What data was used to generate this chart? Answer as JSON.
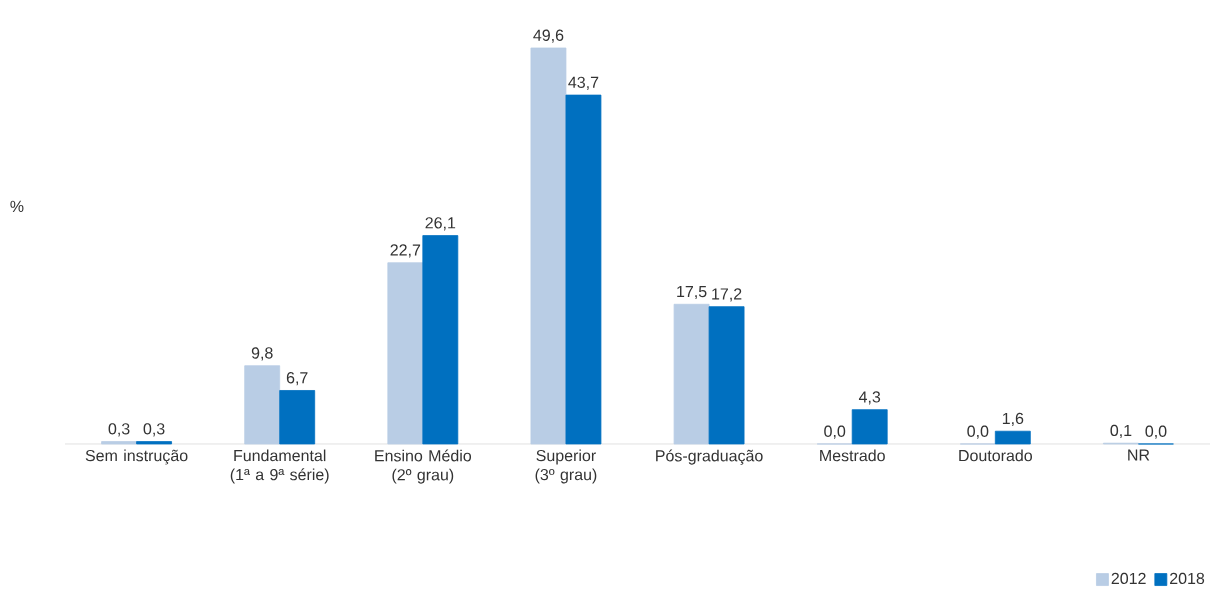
{
  "chart_data": {
    "type": "bar",
    "ylabel": "%",
    "categories": [
      "Sem instrução",
      "Fundamental (1ª a 9ª série)",
      "Ensino Médio (2º grau)",
      "Superior (3º grau)",
      "Pós-graduação",
      "Mestrado",
      "Doutorado",
      "NR"
    ],
    "series": [
      {
        "name": "2012",
        "color": "#b9cde5",
        "values": [
          0.3,
          9.8,
          22.7,
          49.6,
          17.5,
          0.0,
          0.0,
          0.1
        ],
        "value_labels": [
          "0,3",
          "9,8",
          "22,7",
          "49,6",
          "17,5",
          "0,0",
          "0,0",
          "0,1"
        ]
      },
      {
        "name": "2018",
        "color": "#0070c0",
        "values": [
          0.3,
          6.7,
          26.1,
          43.7,
          17.2,
          4.3,
          1.6,
          0.0
        ],
        "value_labels": [
          "0,3",
          "6,7",
          "26,1",
          "43,7",
          "17,2",
          "4,3",
          "1,6",
          "0,0"
        ]
      }
    ],
    "legend": "bottom right",
    "grid": false
  }
}
